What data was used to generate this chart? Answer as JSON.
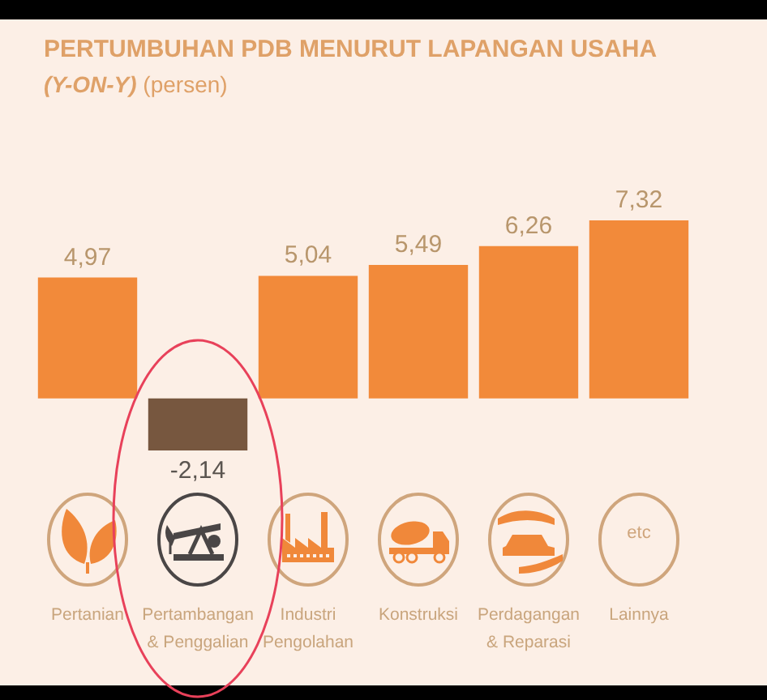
{
  "chart_data": {
    "type": "bar",
    "title": "PERTUMBUHAN PDB MENURUT LAPANGAN USAHA",
    "subtitle": "(Y-ON-Y) (persen)",
    "categories": [
      "Pertanian",
      "Pertambangan & Penggalian",
      "Industri Pengolahan",
      "Konstruksi",
      "Perdagangan & Reparasi",
      "Lainnya"
    ],
    "values": [
      4.97,
      -2.14,
      5.04,
      5.49,
      6.26,
      7.32
    ],
    "colors": [
      "#f28a3a",
      "#77573f",
      "#f28a3a",
      "#f28a3a",
      "#f28a3a",
      "#f28a3a"
    ],
    "value_labels": [
      "4,97",
      "-2,14",
      "5,04",
      "5,49",
      "6,26",
      "7,32"
    ],
    "annotations": [
      "etc"
    ]
  }
}
